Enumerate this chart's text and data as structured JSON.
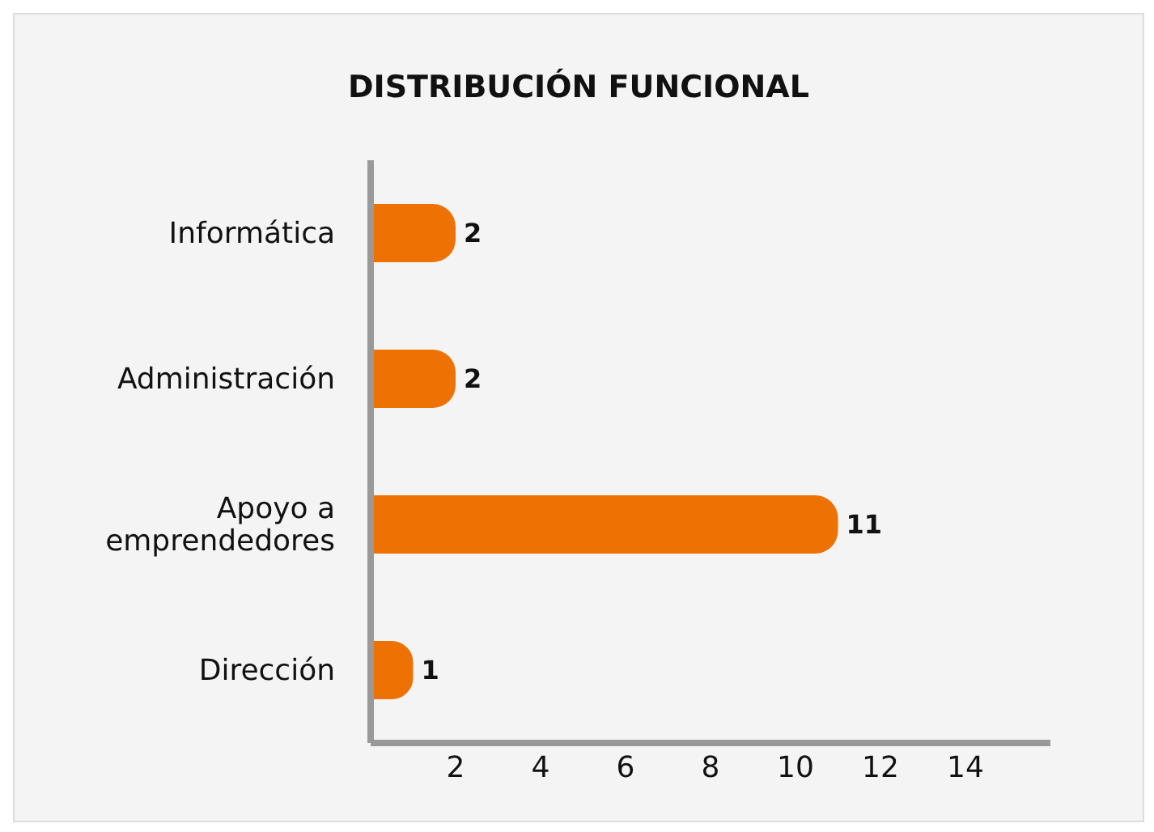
{
  "chart_data": {
    "type": "bar",
    "orientation": "horizontal",
    "title": "DISTRIBUCIÓN FUNCIONAL",
    "categories": [
      "Informática",
      "Administración",
      "Apoyo a emprendedores",
      "Dirección"
    ],
    "values": [
      2,
      2,
      11,
      1
    ],
    "color": "#ee7203",
    "xlim": [
      0,
      16
    ],
    "xticks": [
      2,
      4,
      6,
      8,
      10,
      12,
      14
    ],
    "grid": false,
    "legend": false,
    "data_labels": true
  }
}
